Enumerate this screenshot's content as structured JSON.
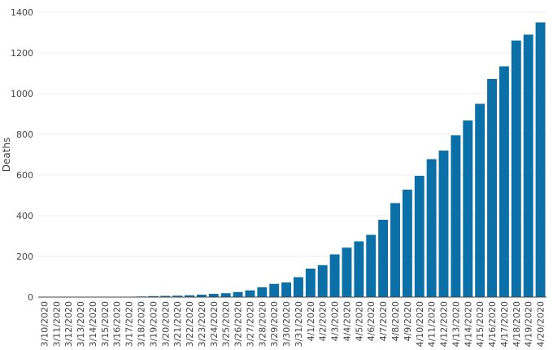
{
  "chart_data": {
    "type": "bar",
    "title": "",
    "xlabel": "",
    "ylabel": "Deaths",
    "ylim": [
      0,
      1400
    ],
    "yticks": [
      0,
      200,
      400,
      600,
      800,
      1000,
      1200,
      1400
    ],
    "grid": true,
    "bar_color": "#0b6fa8",
    "categories": [
      "3/10/2020",
      "3/11/2020",
      "3/12/2020",
      "3/13/2020",
      "3/14/2020",
      "3/15/2020",
      "3/16/2020",
      "3/17/2020",
      "3/18/2020",
      "3/19/2020",
      "3/20/2020",
      "3/21/2020",
      "3/22/2020",
      "3/23/2020",
      "3/24/2020",
      "3/25/2020",
      "3/26/2020",
      "3/27/2020",
      "3/28/2020",
      "3/29/2020",
      "3/30/2020",
      "3/31/2020",
      "4/1/2020",
      "4/2/2020",
      "4/3/2020",
      "4/4/2020",
      "4/5/2020",
      "4/6/2020",
      "4/7/2020",
      "4/8/2020",
      "4/9/2020",
      "4/10/2020",
      "4/11/2020",
      "4/12/2020",
      "4/13/2020",
      "4/14/2020",
      "4/15/2020",
      "4/16/2020",
      "4/17/2020",
      "4/18/2020",
      "4/19/2020",
      "4/20/2020"
    ],
    "values": [
      0,
      0,
      0,
      0,
      0,
      0,
      0,
      2,
      3,
      5,
      6,
      7,
      9,
      12,
      16,
      19,
      25,
      33,
      48,
      65,
      72,
      98,
      140,
      157,
      210,
      243,
      274,
      306,
      380,
      462,
      528,
      596,
      678,
      720,
      795,
      868,
      950,
      1072,
      1134,
      1261,
      1290,
      1350
    ]
  }
}
